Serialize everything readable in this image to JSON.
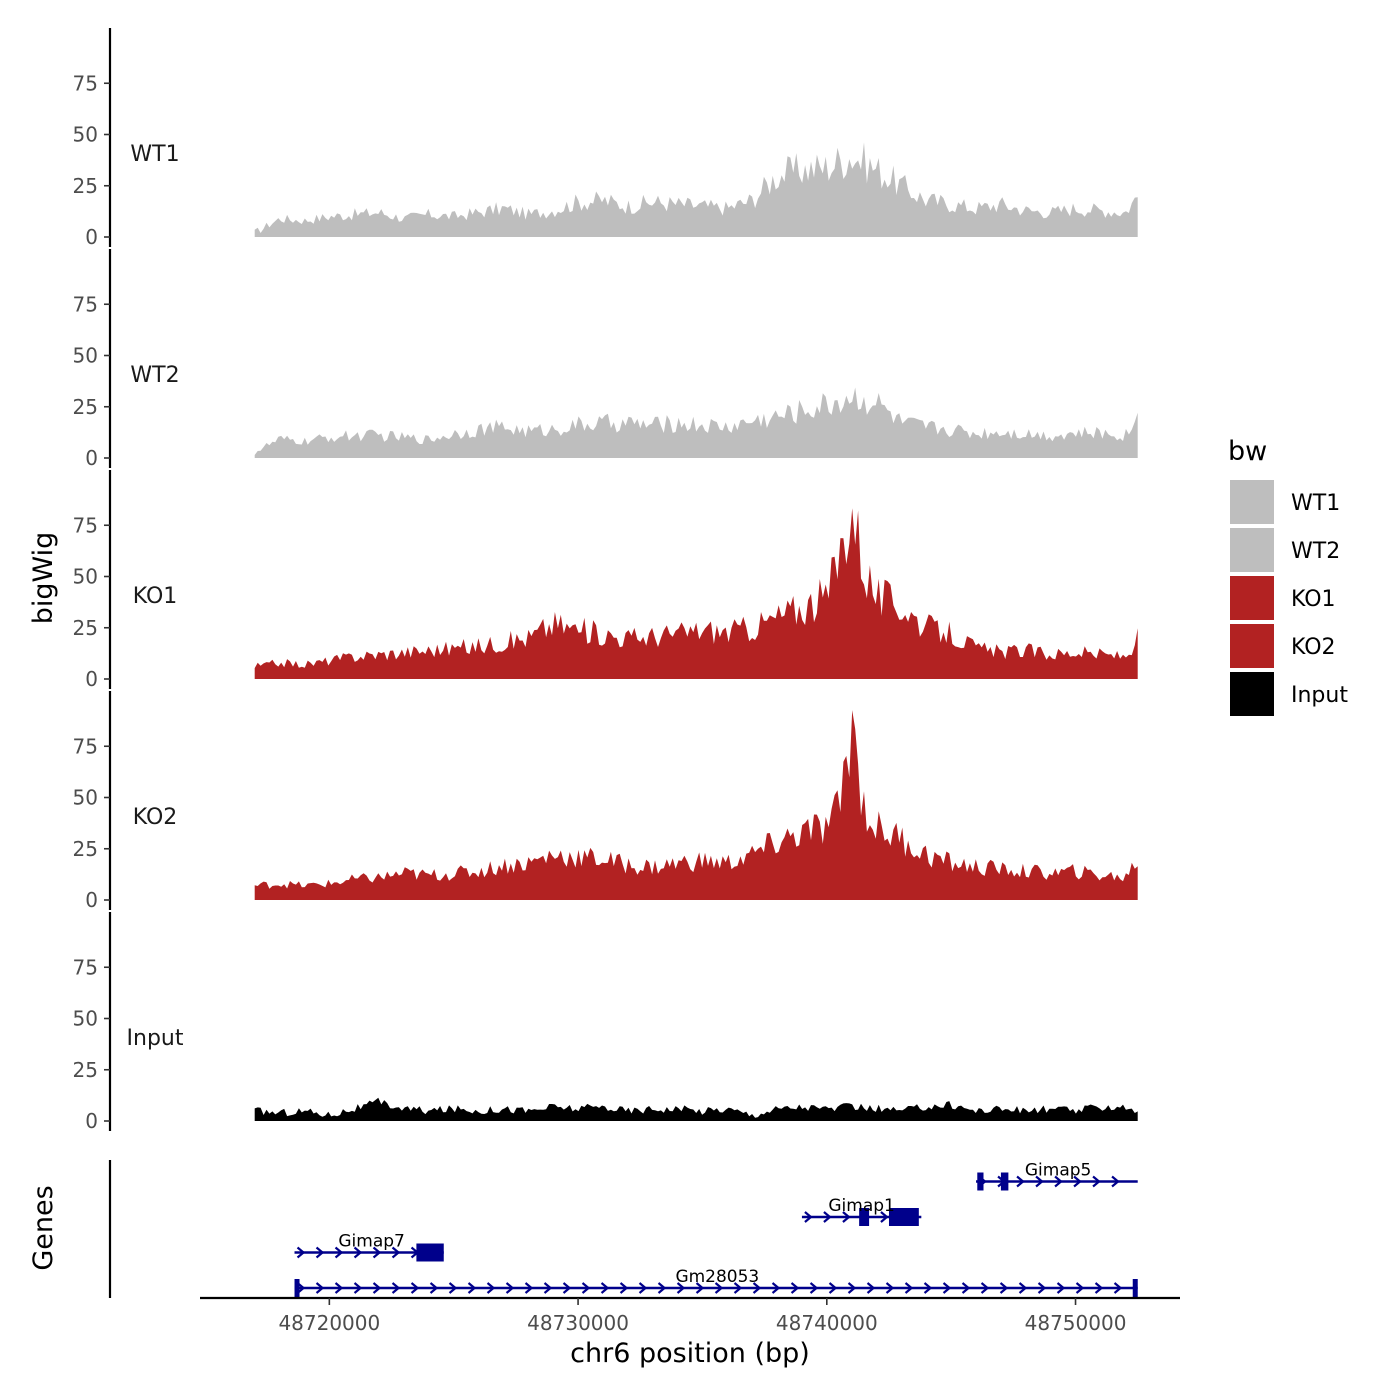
{
  "chart_data": {
    "type": "area",
    "chromosome": "chr6",
    "xlabel": "chr6 position (bp)",
    "ylabel": "bigWig",
    "genes_label": "Genes",
    "xlim": [
      48714800,
      48754200
    ],
    "data_range": [
      48717000,
      48752500
    ],
    "ylim": [
      0,
      100
    ],
    "yticks": [
      0,
      25,
      50,
      75
    ],
    "xticks": [
      48720000,
      48730000,
      48740000,
      48750000
    ],
    "xtick_labels": [
      "48720000",
      "48730000",
      "48740000",
      "48750000"
    ],
    "legend": {
      "title": "bw",
      "placement": "right",
      "entries": [
        {
          "label": "WT1",
          "color": "#bebebe"
        },
        {
          "label": "WT2",
          "color": "#bebebe"
        },
        {
          "label": "KO1",
          "color": "#b22222"
        },
        {
          "label": "KO2",
          "color": "#b22222"
        },
        {
          "label": "Input",
          "color": "#000000"
        }
      ]
    },
    "series": [
      {
        "name": "WT1",
        "color": "#bebebe",
        "x": [
          48717000,
          48718000,
          48719000,
          48720000,
          48721000,
          48722000,
          48723000,
          48724000,
          48725000,
          48726000,
          48727000,
          48728000,
          48729000,
          48730000,
          48731000,
          48732000,
          48733000,
          48734000,
          48735000,
          48736000,
          48737000,
          48738000,
          48739000,
          48740000,
          48741000,
          48742000,
          48743000,
          48744000,
          48745000,
          48746000,
          48747000,
          48748000,
          48749000,
          48750000,
          48751000,
          48752000,
          48752500
        ],
        "values": [
          2,
          9,
          8,
          10,
          11,
          12,
          9,
          11,
          10,
          12,
          14,
          11,
          13,
          17,
          18,
          15,
          17,
          16,
          15,
          14,
          18,
          30,
          33,
          34,
          40,
          33,
          25,
          18,
          16,
          14,
          16,
          13,
          12,
          14,
          13,
          12,
          20
        ]
      },
      {
        "name": "WT2",
        "color": "#bebebe",
        "x": [
          48717000,
          48718000,
          48719000,
          48720000,
          48721000,
          48722000,
          48723000,
          48724000,
          48725000,
          48726000,
          48727000,
          48728000,
          48729000,
          48730000,
          48731000,
          48732000,
          48733000,
          48734000,
          48735000,
          48736000,
          48737000,
          48738000,
          48739000,
          48740000,
          48741000,
          48742000,
          48743000,
          48744000,
          48745000,
          48746000,
          48747000,
          48748000,
          48749000,
          48750000,
          48751000,
          48752000,
          48752500
        ],
        "values": [
          3,
          9,
          8,
          10,
          11,
          11,
          10,
          9,
          12,
          14,
          15,
          13,
          14,
          16,
          17,
          17,
          16,
          17,
          16,
          15,
          18,
          20,
          23,
          26,
          30,
          27,
          17,
          15,
          14,
          12,
          13,
          12,
          11,
          12,
          12,
          11,
          20
        ]
      },
      {
        "name": "KO1",
        "color": "#b22222",
        "x": [
          48717000,
          48718000,
          48719000,
          48720000,
          48721000,
          48722000,
          48723000,
          48724000,
          48725000,
          48726000,
          48727000,
          48728000,
          48729000,
          48730000,
          48731000,
          48732000,
          48733000,
          48734000,
          48735000,
          48736000,
          48737000,
          48738000,
          48739000,
          48740000,
          48740500,
          48741000,
          48741500,
          48742000,
          48743000,
          48744000,
          48745000,
          48746000,
          48747000,
          48748000,
          48749000,
          48750000,
          48751000,
          48752000,
          48752500
        ],
        "values": [
          6,
          8,
          7,
          9,
          11,
          12,
          13,
          14,
          15,
          16,
          18,
          20,
          27,
          24,
          22,
          20,
          21,
          22,
          24,
          23,
          25,
          30,
          35,
          40,
          60,
          85,
          55,
          40,
          36,
          25,
          22,
          15,
          13,
          14,
          12,
          13,
          12,
          11,
          20
        ]
      },
      {
        "name": "KO2",
        "color": "#b22222",
        "x": [
          48717000,
          48718000,
          48719000,
          48720000,
          48721000,
          48722000,
          48723000,
          48724000,
          48725000,
          48726000,
          48727000,
          48728000,
          48729000,
          48730000,
          48731000,
          48732000,
          48733000,
          48734000,
          48735000,
          48736000,
          48737000,
          48738000,
          48739000,
          48740000,
          48740500,
          48741000,
          48741500,
          48742000,
          48743000,
          48744000,
          48745000,
          48746000,
          48747000,
          48748000,
          48749000,
          48750000,
          48751000,
          48752000,
          48752500
        ],
        "values": [
          7,
          8,
          7,
          8,
          10,
          11,
          13,
          12,
          13,
          14,
          17,
          18,
          22,
          21,
          20,
          17,
          16,
          18,
          19,
          18,
          22,
          28,
          33,
          35,
          45,
          88,
          45,
          35,
          30,
          22,
          18,
          16,
          15,
          14,
          13,
          14,
          12,
          11,
          20
        ]
      },
      {
        "name": "Input",
        "color": "#000000",
        "x": [
          48717000,
          48718000,
          48719000,
          48720000,
          48721000,
          48722000,
          48723000,
          48724000,
          48725000,
          48726000,
          48727000,
          48728000,
          48729000,
          48730000,
          48731000,
          48732000,
          48733000,
          48734000,
          48735000,
          48736000,
          48737000,
          48738000,
          48739000,
          48740000,
          48741000,
          48742000,
          48743000,
          48744000,
          48745000,
          48746000,
          48747000,
          48748000,
          48749000,
          48750000,
          48751000,
          48752000,
          48752500
        ],
        "values": [
          5,
          4,
          5,
          3,
          6,
          9,
          6,
          5,
          6,
          5,
          6,
          5,
          7,
          6,
          7,
          5,
          6,
          6,
          5,
          6,
          3,
          6,
          7,
          6,
          7,
          6,
          5,
          7,
          8,
          5,
          6,
          5,
          6,
          5,
          7,
          7,
          5
        ]
      }
    ],
    "genes": [
      {
        "name": "Gimap5",
        "start": 48746000,
        "end": 48752500,
        "row": 3,
        "exons": [
          [
            48746050,
            48746300
          ],
          [
            48747000,
            48747300
          ]
        ],
        "color": "#00008b"
      },
      {
        "name": "Gimap1",
        "start": 48739000,
        "end": 48743800,
        "row": 2,
        "exons": [
          [
            48741300,
            48741700
          ],
          [
            48742500,
            48743700
          ]
        ],
        "color": "#00008b"
      },
      {
        "name": "Gimap7",
        "start": 48718600,
        "end": 48724600,
        "row": 1,
        "exons": [
          [
            48723500,
            48724600
          ]
        ],
        "color": "#00008b"
      },
      {
        "name": "Gm28053",
        "start": 48718600,
        "end": 48752500,
        "row": 0,
        "exons": [
          [
            48718600,
            48718800
          ],
          [
            48752300,
            48752500
          ]
        ],
        "color": "#00008b"
      }
    ]
  }
}
